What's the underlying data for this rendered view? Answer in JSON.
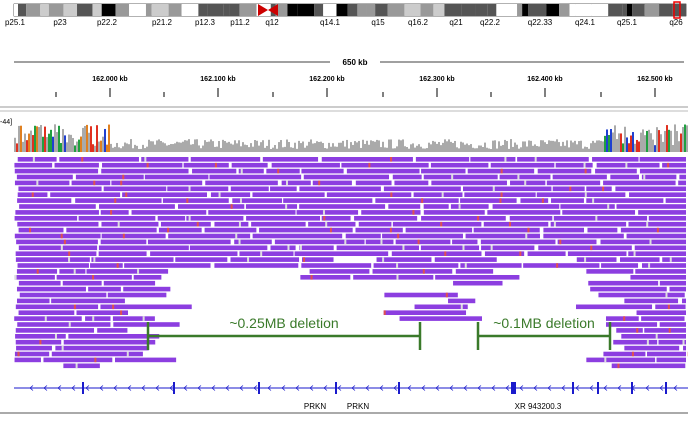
{
  "cytobands": [
    "p25.1",
    "p23",
    "p22.2",
    "p21.2",
    "p12.3",
    "p11.2",
    "q12",
    "q14.1",
    "q15",
    "q16.2",
    "q21",
    "q22.2",
    "q22.33",
    "q24.1",
    "q25.1",
    "q26"
  ],
  "span_label": "650 kb",
  "ruler_ticks": [
    "162.000 kb",
    "162.100 kb",
    "162.200 kb",
    "162.300 kb",
    "162.400 kb",
    "162.500 kb"
  ],
  "coverage_range": "-44]",
  "annotations": [
    "~0.25MB deletion",
    "~0.1MB deletion"
  ],
  "genes": [
    "PRKN",
    "PRKN",
    "XR 943200.3"
  ]
}
